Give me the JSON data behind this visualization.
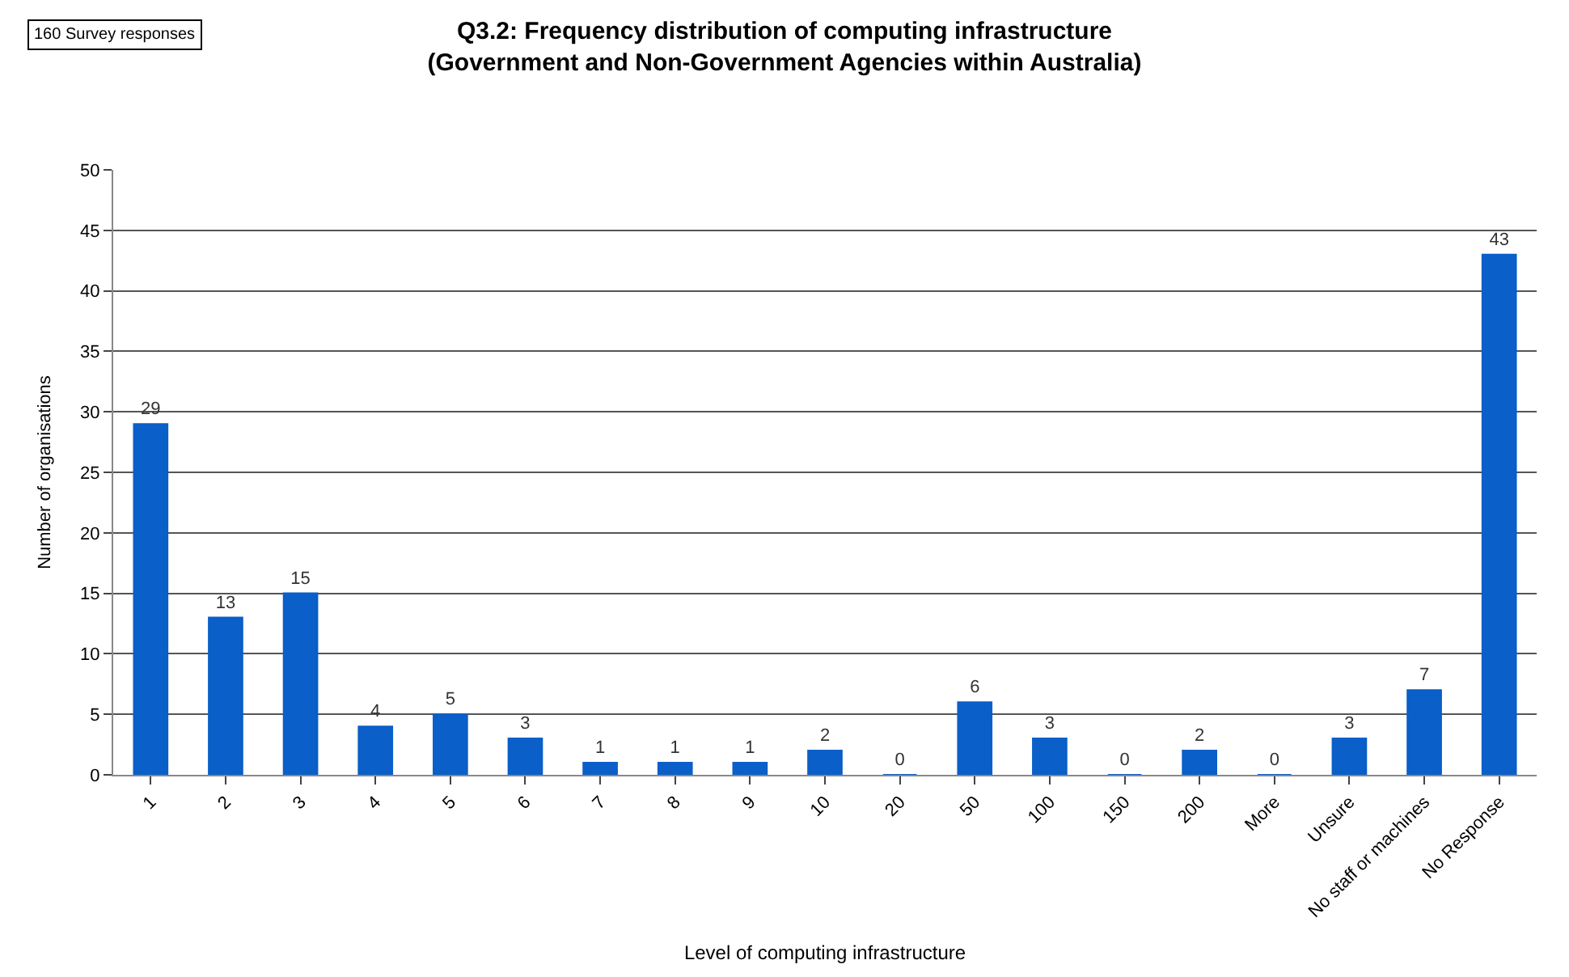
{
  "chart_data": {
    "type": "bar",
    "title": "Q3.2: Frequency distribution of computing infrastructure\n(Government and Non-Government Agencies within Australia)",
    "xlabel": "Level of computing infrastructure",
    "ylabel": "Number of organisations",
    "annotations": [
      "160 Survey responses"
    ],
    "categories": [
      "1",
      "2",
      "3",
      "4",
      "5",
      "6",
      "7",
      "8",
      "9",
      "10",
      "20",
      "50",
      "100",
      "150",
      "200",
      "More",
      "Unsure",
      "No staff or machines",
      "No Response"
    ],
    "values": [
      29,
      13,
      15,
      4,
      5,
      3,
      1,
      1,
      1,
      2,
      0,
      6,
      3,
      0,
      2,
      0,
      3,
      7,
      43
    ],
    "color": "#0a5fc8",
    "ylim": [
      0,
      50
    ],
    "yticks": [
      0,
      5,
      10,
      15,
      20,
      25,
      30,
      35,
      40,
      45,
      50
    ],
    "grid": "y",
    "data_labels": true
  }
}
